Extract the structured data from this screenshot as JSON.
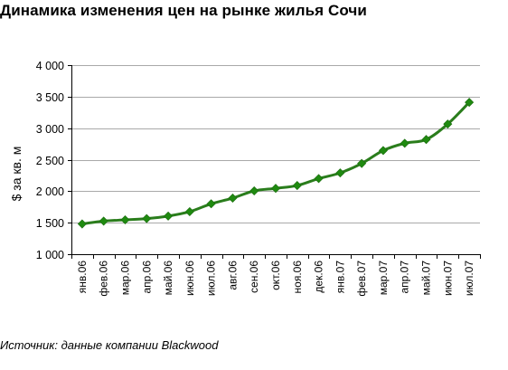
{
  "chart_data": {
    "type": "line",
    "title": "Динамика изменения цен на рынке жилья Сочи",
    "ylabel": "$ за кв. м",
    "xlabel": "",
    "ylim": [
      1000,
      4000
    ],
    "yticks": [
      1000,
      1500,
      2000,
      2500,
      3000,
      3500,
      4000
    ],
    "ytick_labels": [
      "1 000",
      "1 500",
      "2 000",
      "2 500",
      "3 000",
      "3 500",
      "4 000"
    ],
    "categories": [
      "янв.06",
      "фев.06",
      "мар.06",
      "апр.06",
      "май.06",
      "июн.06",
      "июл.06",
      "авг.06",
      "сен.06",
      "окт.06",
      "ноя.06",
      "дек.06",
      "янв.07",
      "фев.07",
      "мар.07",
      "апр.07",
      "май.07",
      "июн.07",
      "июл.07"
    ],
    "series": [
      {
        "values": [
          1480,
          1525,
          1545,
          1565,
          1605,
          1675,
          1800,
          1890,
          2005,
          2045,
          2090,
          2200,
          2290,
          2440,
          2645,
          2760,
          2820,
          3065,
          3410
        ]
      }
    ],
    "grid": true,
    "legend": "none",
    "colors": {
      "line": "#2a7d1c",
      "marker": "#1f8a10",
      "grid": "#a9a9a9",
      "axis": "#000000"
    },
    "source": "Источник: данные компании Blackwood"
  }
}
